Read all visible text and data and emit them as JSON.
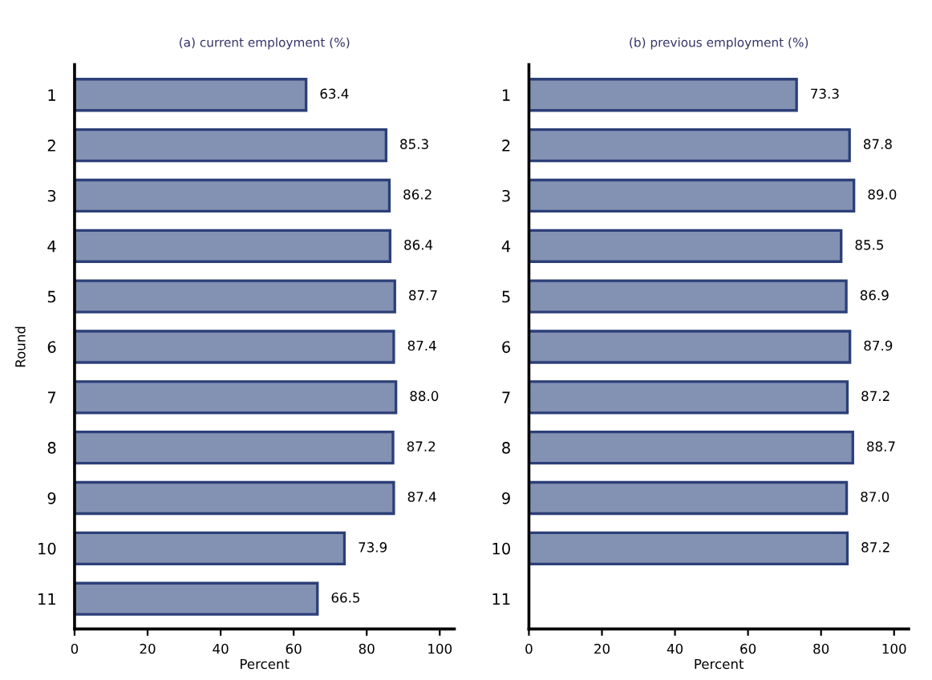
{
  "chart_data": [
    {
      "type": "bar",
      "orientation": "horizontal",
      "title": "(a) current employment (%)",
      "xlabel": "Percent",
      "ylabel": "Round",
      "categories": [
        "1",
        "2",
        "3",
        "4",
        "5",
        "6",
        "7",
        "8",
        "9",
        "10",
        "11"
      ],
      "series": [
        {
          "color": "#8391b3",
          "values": [
            63.4,
            85.3,
            86.2,
            86.4,
            87.7,
            87.4,
            88.0,
            87.2,
            87.4,
            73.9,
            66.5
          ],
          "value_labels": [
            "63.4",
            "85.3",
            "86.2",
            "86.4",
            "87.7",
            "87.4",
            "88.0",
            "87.2",
            "87.4",
            "73.9",
            "66.5"
          ]
        }
      ],
      "xlim": [
        0,
        104
      ],
      "xticks": [
        0,
        20,
        40,
        60,
        80,
        100
      ],
      "grid": false,
      "legend": false
    },
    {
      "type": "bar",
      "orientation": "horizontal",
      "title": "(b) previous employment (%)",
      "xlabel": "Percent",
      "categories": [
        "1",
        "2",
        "3",
        "4",
        "5",
        "6",
        "7",
        "8",
        "9",
        "10",
        "11"
      ],
      "series": [
        {
          "color": "#8391b3",
          "values": [
            73.3,
            87.8,
            89.0,
            85.5,
            86.9,
            87.9,
            87.2,
            88.7,
            87.0,
            87.2,
            null
          ],
          "value_labels": [
            "73.3",
            "87.8",
            "89.0",
            "85.5",
            "86.9",
            "87.9",
            "87.2",
            "88.7",
            "87.0",
            "87.2",
            null
          ]
        }
      ],
      "xlim": [
        0,
        104
      ],
      "xticks": [
        0,
        20,
        40,
        60,
        80,
        100
      ],
      "grid": false,
      "legend": false
    }
  ]
}
